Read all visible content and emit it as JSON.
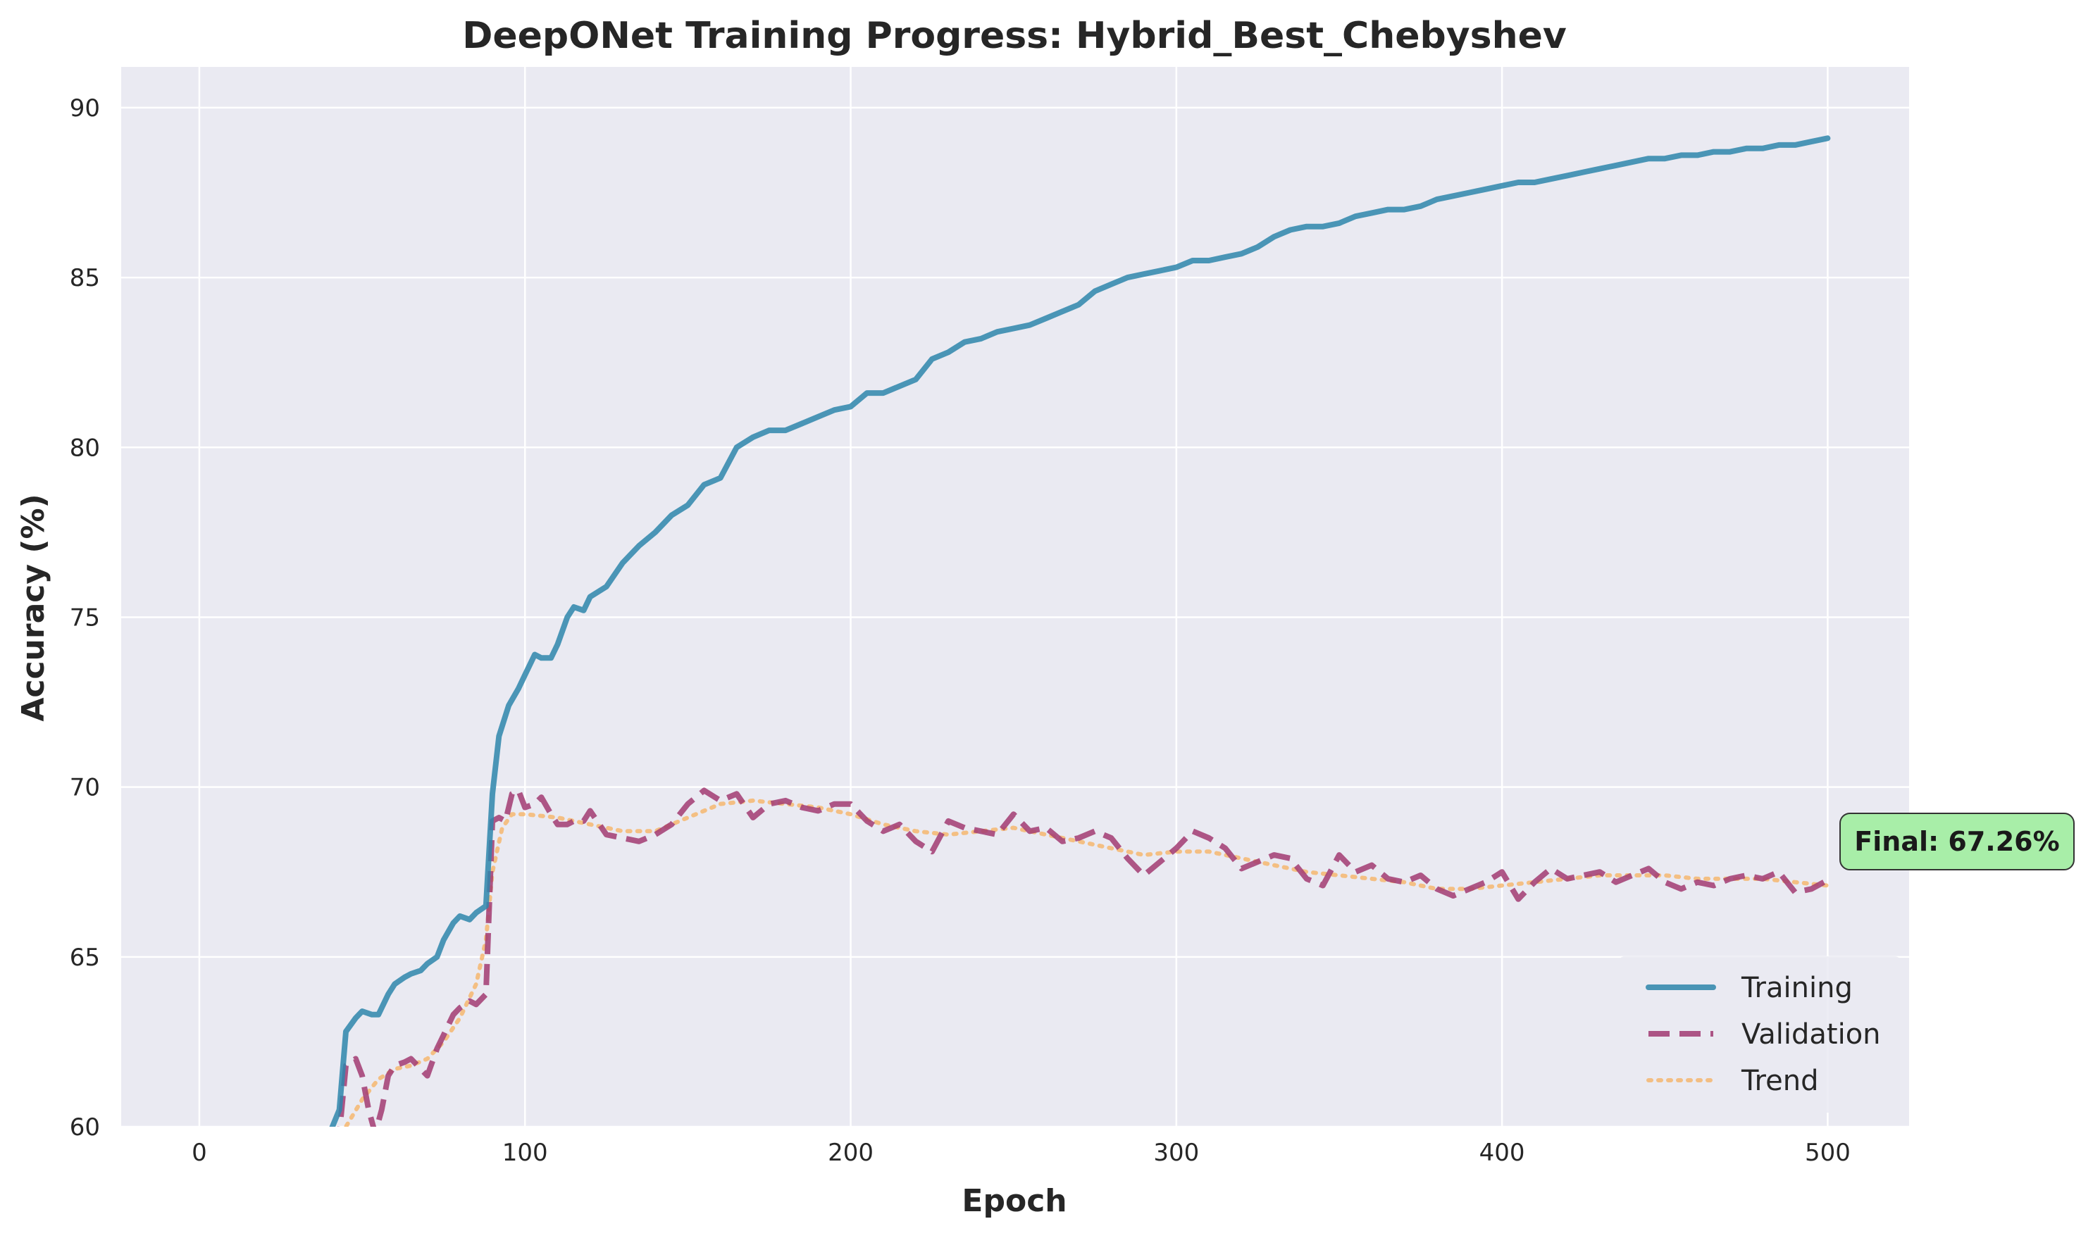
{
  "chart_data": {
    "type": "line",
    "title": "DeepONet Training Progress: Hybrid_Best_Chebyshev",
    "xlabel": "Epoch",
    "ylabel": "Accuracy (%)",
    "xlim": [
      -24,
      525
    ],
    "ylim": [
      60,
      91.2
    ],
    "xticks": [
      0,
      100,
      200,
      300,
      400,
      500
    ],
    "yticks": [
      60,
      65,
      70,
      75,
      80,
      85,
      90
    ],
    "grid": true,
    "legend_position": "lower-right",
    "background_color": "#eaeaf2",
    "series": [
      {
        "name": "Training",
        "color": "#2e86ab",
        "style": "solid",
        "x": [
          40,
          43,
          45,
          48,
          50,
          53,
          55,
          58,
          60,
          63,
          65,
          68,
          70,
          73,
          75,
          78,
          80,
          83,
          85,
          88,
          90,
          92,
          95,
          98,
          100,
          103,
          105,
          108,
          110,
          113,
          115,
          118,
          120,
          125,
          130,
          135,
          140,
          145,
          150,
          155,
          160,
          165,
          170,
          175,
          180,
          185,
          190,
          195,
          200,
          205,
          210,
          215,
          220,
          225,
          230,
          235,
          240,
          245,
          250,
          255,
          260,
          265,
          270,
          275,
          280,
          285,
          290,
          295,
          300,
          305,
          310,
          315,
          320,
          325,
          330,
          335,
          340,
          345,
          350,
          355,
          360,
          365,
          370,
          375,
          380,
          385,
          390,
          395,
          400,
          405,
          410,
          415,
          420,
          425,
          430,
          435,
          440,
          445,
          450,
          455,
          460,
          465,
          470,
          475,
          480,
          485,
          490,
          495,
          500
        ],
        "values": [
          59.8,
          60.5,
          62.8,
          63.2,
          63.4,
          63.3,
          63.3,
          63.9,
          64.2,
          64.4,
          64.5,
          64.6,
          64.8,
          65.0,
          65.5,
          66.0,
          66.2,
          66.1,
          66.3,
          66.5,
          69.8,
          71.5,
          72.4,
          72.9,
          73.3,
          73.9,
          73.8,
          73.8,
          74.2,
          75.0,
          75.3,
          75.2,
          75.6,
          75.9,
          76.6,
          77.1,
          77.5,
          78.0,
          78.3,
          78.9,
          79.1,
          80.0,
          80.3,
          80.5,
          80.5,
          80.7,
          80.9,
          81.1,
          81.2,
          81.6,
          81.6,
          81.8,
          82.0,
          82.6,
          82.8,
          83.1,
          83.2,
          83.4,
          83.5,
          83.6,
          83.8,
          84.0,
          84.2,
          84.6,
          84.8,
          85.0,
          85.1,
          85.2,
          85.3,
          85.5,
          85.5,
          85.6,
          85.7,
          85.9,
          86.2,
          86.4,
          86.5,
          86.5,
          86.6,
          86.8,
          86.9,
          87.0,
          87.0,
          87.1,
          87.3,
          87.4,
          87.5,
          87.6,
          87.7,
          87.8,
          87.8,
          87.9,
          88.0,
          88.1,
          88.2,
          88.3,
          88.4,
          88.5,
          88.5,
          88.6,
          88.6,
          88.7,
          88.7,
          88.8,
          88.8,
          88.9,
          88.9,
          89.0,
          89.1
        ]
      },
      {
        "name": "Validation",
        "color": "#a23b72",
        "style": "dashed",
        "x": [
          40,
          43,
          45,
          48,
          50,
          52,
          54,
          56,
          58,
          60,
          63,
          65,
          68,
          70,
          73,
          75,
          78,
          80,
          83,
          85,
          88,
          90,
          92,
          94,
          96,
          98,
          100,
          103,
          105,
          108,
          110,
          113,
          115,
          118,
          120,
          125,
          130,
          135,
          140,
          145,
          150,
          155,
          160,
          165,
          170,
          175,
          180,
          185,
          190,
          195,
          200,
          205,
          210,
          215,
          220,
          225,
          230,
          235,
          240,
          245,
          250,
          255,
          260,
          265,
          270,
          275,
          280,
          285,
          290,
          295,
          300,
          305,
          310,
          315,
          320,
          325,
          330,
          335,
          340,
          345,
          350,
          355,
          360,
          365,
          370,
          375,
          380,
          385,
          390,
          395,
          400,
          405,
          410,
          415,
          420,
          425,
          430,
          435,
          440,
          445,
          450,
          455,
          460,
          465,
          470,
          475,
          480,
          485,
          490,
          495,
          500
        ],
        "values": [
          58.5,
          59.8,
          61.8,
          62.0,
          61.5,
          60.5,
          59.8,
          60.5,
          61.5,
          61.8,
          61.9,
          62.0,
          61.7,
          61.5,
          62.3,
          62.7,
          63.3,
          63.5,
          63.7,
          63.6,
          63.9,
          69.0,
          69.1,
          69.0,
          69.8,
          69.9,
          69.4,
          69.5,
          69.7,
          69.2,
          68.9,
          68.9,
          69.0,
          69.0,
          69.3,
          68.6,
          68.5,
          68.4,
          68.6,
          68.9,
          69.5,
          69.9,
          69.6,
          69.8,
          69.1,
          69.5,
          69.6,
          69.4,
          69.3,
          69.5,
          69.5,
          69.0,
          68.7,
          68.9,
          68.4,
          68.1,
          69.0,
          68.8,
          68.7,
          68.6,
          69.2,
          68.7,
          68.8,
          68.4,
          68.5,
          68.7,
          68.5,
          67.9,
          67.4,
          67.8,
          68.2,
          68.7,
          68.5,
          68.2,
          67.6,
          67.8,
          68.0,
          67.9,
          67.3,
          67.1,
          68.0,
          67.5,
          67.7,
          67.3,
          67.2,
          67.4,
          67.0,
          66.8,
          67.0,
          67.2,
          67.5,
          66.7,
          67.2,
          67.6,
          67.3,
          67.4,
          67.5,
          67.2,
          67.4,
          67.6,
          67.2,
          67.0,
          67.2,
          67.1,
          67.3,
          67.4,
          67.3,
          67.5,
          66.9,
          67.0,
          67.26
        ]
      },
      {
        "name": "Trend",
        "color": "#f7b05e",
        "style": "dotted",
        "x": [
          40,
          45,
          50,
          55,
          60,
          65,
          70,
          75,
          80,
          85,
          88,
          90,
          93,
          96,
          100,
          110,
          120,
          130,
          140,
          150,
          160,
          170,
          180,
          190,
          200,
          210,
          220,
          230,
          240,
          250,
          260,
          270,
          280,
          290,
          300,
          310,
          320,
          330,
          340,
          350,
          360,
          370,
          380,
          390,
          400,
          410,
          420,
          430,
          440,
          450,
          460,
          470,
          480,
          490,
          500
        ],
        "values": [
          59.3,
          60.0,
          60.8,
          61.4,
          61.7,
          61.8,
          62.0,
          62.5,
          63.2,
          64.2,
          65.5,
          67.5,
          68.8,
          69.2,
          69.2,
          69.1,
          68.9,
          68.7,
          68.7,
          69.1,
          69.5,
          69.6,
          69.5,
          69.4,
          69.2,
          68.9,
          68.7,
          68.6,
          68.7,
          68.8,
          68.6,
          68.4,
          68.2,
          68.0,
          68.1,
          68.1,
          67.9,
          67.7,
          67.5,
          67.4,
          67.3,
          67.2,
          67.0,
          67.0,
          67.1,
          67.2,
          67.3,
          67.4,
          67.4,
          67.4,
          67.3,
          67.3,
          67.3,
          67.2,
          67.1
        ]
      }
    ],
    "annotation": {
      "text": "Final: 67.26%",
      "value": 67.26,
      "box_color": "#a8eea8"
    }
  }
}
